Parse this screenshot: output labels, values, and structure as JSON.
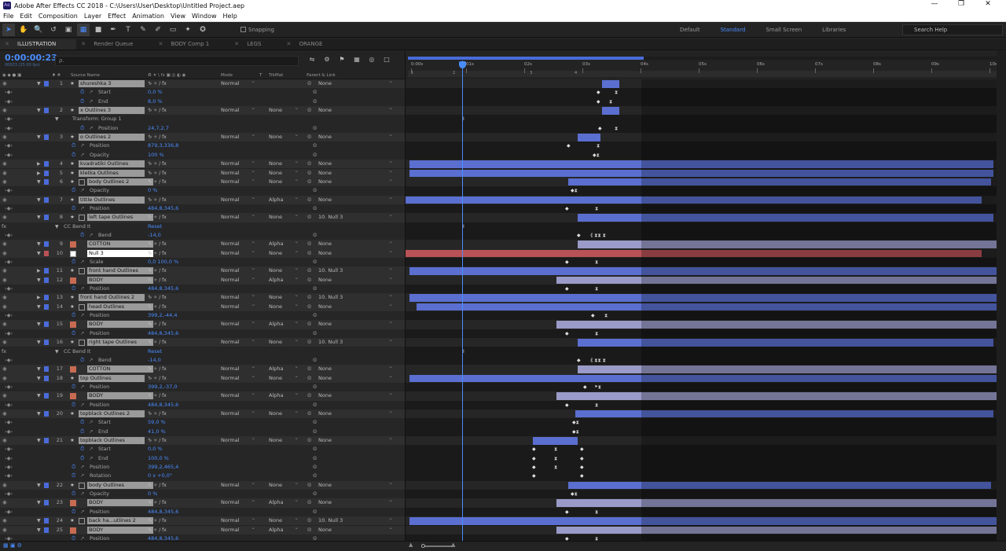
{
  "window": {
    "title": "Adobe After Effects CC 2018 - C:\\Users\\User\\Desktop\\Untitled Project.aep",
    "app_icon": "Ae"
  },
  "menu": [
    "File",
    "Edit",
    "Composition",
    "Layer",
    "Effect",
    "Animation",
    "View",
    "Window",
    "Help"
  ],
  "toolbar": {
    "snapping_label": "Snapping",
    "workspaces": [
      "Default",
      "Standard",
      "Small Screen",
      "Libraries"
    ],
    "active_workspace": "Standard",
    "search_placeholder": "Search Help"
  },
  "tabs": [
    "ILLUSTRATION",
    "Render Queue",
    "BODY Comp 1",
    "LEGS",
    "ORANGE"
  ],
  "active_tab": "ILLUSTRATION",
  "timecode": "0:00:00:23",
  "fps": "00023 (25.00 fps)",
  "search_symbol": "ρ.",
  "columns": {
    "source": "Source Name",
    "mode": "Mode",
    "t": "T",
    "trkmat": "TrkMat",
    "parent": "Parent & Link"
  },
  "ruler": [
    "0:00s",
    "01s",
    "02s",
    "03s",
    "04s",
    "05s",
    "06s",
    "07s",
    "08s",
    "09s",
    "10s"
  ],
  "markers": [
    "1",
    "2",
    "3",
    "4"
  ],
  "rows": [
    {
      "type": "layer",
      "num": "1",
      "name": "shureshka 3",
      "icon": "star",
      "mode": "Normal",
      "trk": "",
      "parent": "None",
      "color": "#4a6bd8",
      "bar": [
        250,
        272
      ],
      "barc": "blue"
    },
    {
      "type": "prop",
      "name": "Start",
      "val": "0,0 %",
      "indent": 1,
      "kf": [
        [
          243,
          "◆"
        ],
        [
          266,
          "⧗"
        ]
      ]
    },
    {
      "type": "prop",
      "name": "End",
      "val": "8,0 %",
      "indent": 1,
      "kf": [
        [
          243,
          "◆"
        ],
        [
          259,
          "⧗"
        ]
      ]
    },
    {
      "type": "layer",
      "num": "2",
      "name": "x Outlines 3",
      "icon": "star",
      "mode": "Normal",
      "trk": "None",
      "parent": "None",
      "color": "#4a6bd8",
      "bar": [
        250,
        272
      ],
      "barc": "blue"
    },
    {
      "type": "grp",
      "name": "Transform: Group 1",
      "indent": 0,
      "kf": [
        [
          73,
          "I"
        ]
      ]
    },
    {
      "type": "prop",
      "name": "Position",
      "val": "24,7,2,7",
      "indent": 1,
      "kf": [
        [
          245,
          "◆"
        ],
        [
          266,
          "⧗"
        ]
      ]
    },
    {
      "type": "layer",
      "num": "3",
      "name": "o Outlines 2",
      "icon": "star",
      "mode": "Normal",
      "trk": "None",
      "parent": "None",
      "color": "#4a6bd8",
      "bar": [
        219,
        248
      ],
      "barc": "blue"
    },
    {
      "type": "prop",
      "name": "Position",
      "val": "879,3,336,8",
      "indent": 0,
      "kf": [
        [
          205,
          "◆"
        ],
        [
          243,
          "⧗"
        ]
      ]
    },
    {
      "type": "prop",
      "name": "Opacity",
      "val": "100 %",
      "indent": 0,
      "kf": [
        [
          238,
          "◆⧗"
        ]
      ]
    },
    {
      "type": "layer",
      "num": "4",
      "name": "kvadratiki Outlines",
      "icon": "star",
      "mode": "Normal",
      "trk": "None",
      "parent": "None",
      "color": "#4a6bd8",
      "bar": [
        5,
        748
      ],
      "barc": "blue",
      "collapsed": true
    },
    {
      "type": "layer",
      "num": "5",
      "name": "kletka Outlines",
      "icon": "star",
      "mode": "Normal",
      "trk": "None",
      "parent": "None",
      "color": "#4a6bd8",
      "bar": [
        5,
        748
      ],
      "barc": "blue",
      "collapsed": true
    },
    {
      "type": "layer",
      "num": "6",
      "name": "body Outlines 2",
      "icon": "star",
      "mode": "Normal",
      "trk": "None",
      "parent": "None",
      "color": "#4a6bd8",
      "bar": [
        207,
        745
      ],
      "barc": "blue",
      "box": true
    },
    {
      "type": "prop",
      "name": "Opacity",
      "val": "0 %",
      "indent": 0,
      "kf": [
        [
          210,
          "◆⧗"
        ]
      ]
    },
    {
      "type": "layer",
      "num": "7",
      "name": "tittle Outlines",
      "icon": "star",
      "mode": "Normal",
      "trk": "Alpha",
      "parent": "None",
      "color": "#4a6bd8",
      "bar": [
        0,
        733
      ],
      "barc": "blue"
    },
    {
      "type": "prop",
      "name": "Position",
      "val": "484,8,345,6",
      "indent": 0,
      "kf": [
        [
          203,
          "◆"
        ],
        [
          241,
          "⧗"
        ]
      ]
    },
    {
      "type": "layer",
      "num": "8",
      "name": "left tape Outlines",
      "icon": "star",
      "mode": "Normal",
      "trk": "None",
      "parent": "10. Null 3",
      "color": "#4a6bd8",
      "bar": [
        219,
        748
      ],
      "barc": "blue",
      "box": true
    },
    {
      "type": "fx",
      "name": "CC Bend It",
      "val": "Reset",
      "indent": 0,
      "kf": [
        [
          73,
          "I"
        ]
      ]
    },
    {
      "type": "prop",
      "name": "Bend",
      "val": "-14,0",
      "indent": 1,
      "kf": [
        [
          218,
          "◆"
        ],
        [
          235,
          "⟪ ⧗⧗ ⧗"
        ]
      ]
    },
    {
      "type": "layer",
      "num": "9",
      "name": "COTTON",
      "icon": "ai",
      "mode": "Normal",
      "trk": "Alpha",
      "parent": "None",
      "color": "#4a6bd8",
      "bar": [
        219,
        753
      ],
      "barc": "lav"
    },
    {
      "type": "layer",
      "num": "10",
      "name": "Null 3",
      "icon": "null",
      "mode": "Normal",
      "trk": "None",
      "parent": "None",
      "color": "#b85257",
      "bar": [
        0,
        733
      ],
      "barc": "red"
    },
    {
      "type": "prop",
      "name": "Scale",
      "val": "0,0 100,0 %",
      "indent": 0,
      "kf": [
        [
          203,
          "◆"
        ],
        [
          241,
          "⧗"
        ]
      ]
    },
    {
      "type": "layer",
      "num": "11",
      "name": "front hand Outlines",
      "icon": "star",
      "mode": "Normal",
      "trk": "None",
      "parent": "10. Null 3",
      "color": "#4a6bd8",
      "bar": [
        5,
        753
      ],
      "barc": "blue",
      "box": true,
      "collapsed": true
    },
    {
      "type": "layer",
      "num": "12",
      "name": "BODY",
      "icon": "ai",
      "mode": "Normal",
      "trk": "Alpha",
      "parent": "None",
      "color": "#4a6bd8",
      "bar": [
        192,
        753
      ],
      "barc": "lav"
    },
    {
      "type": "prop",
      "name": "Position",
      "val": "484,8,345,6",
      "indent": 0,
      "kf": [
        [
          203,
          "◆"
        ],
        [
          241,
          "⧗"
        ]
      ]
    },
    {
      "type": "layer",
      "num": "13",
      "name": "front hand Outlines 2",
      "icon": "star",
      "mode": "Normal",
      "trk": "None",
      "parent": "10. Null 3",
      "color": "#4a6bd8",
      "bar": [
        5,
        753
      ],
      "barc": "blue",
      "collapsed": true
    },
    {
      "type": "layer",
      "num": "14",
      "name": "head Outlines",
      "icon": "star",
      "mode": "Normal",
      "trk": "None",
      "parent": "None",
      "color": "#4a6bd8",
      "bar": [
        14,
        753
      ],
      "barc": "blue",
      "box": true
    },
    {
      "type": "prop",
      "name": "Position",
      "val": "399,2,-44,4",
      "indent": 0,
      "kf": [
        [
          236,
          "◆"
        ],
        [
          253,
          "⧗"
        ]
      ]
    },
    {
      "type": "layer",
      "num": "15",
      "name": "BODY",
      "icon": "ai",
      "mode": "Normal",
      "trk": "Alpha",
      "parent": "None",
      "color": "#4a6bd8",
      "bar": [
        192,
        753
      ],
      "barc": "lav"
    },
    {
      "type": "prop",
      "name": "Position",
      "val": "484,8,345,6",
      "indent": 0,
      "kf": [
        [
          203,
          "◆"
        ],
        [
          241,
          "⧗"
        ]
      ]
    },
    {
      "type": "layer",
      "num": "16",
      "name": "right tape Outlines",
      "icon": "star",
      "mode": "Normal",
      "trk": "None",
      "parent": "10. Null 3",
      "color": "#4a6bd8",
      "bar": [
        219,
        748
      ],
      "barc": "blue",
      "box": true
    },
    {
      "type": "fx",
      "name": "CC Bend It",
      "val": "Reset",
      "indent": 0,
      "kf": [
        [
          73,
          "I"
        ]
      ]
    },
    {
      "type": "prop",
      "name": "Bend",
      "val": "-14,0",
      "indent": 1,
      "kf": [
        [
          218,
          "◆"
        ],
        [
          235,
          "⟪ ⧗⧗ ⧗"
        ]
      ]
    },
    {
      "type": "layer",
      "num": "17",
      "name": "COTTON",
      "icon": "ai",
      "mode": "Normal",
      "trk": "Alpha",
      "parent": "None",
      "color": "#4a6bd8",
      "bar": [
        219,
        753
      ],
      "barc": "lav"
    },
    {
      "type": "layer",
      "num": "18",
      "name": "top Outlines",
      "icon": "star",
      "mode": "Normal",
      "trk": "None",
      "parent": "None",
      "color": "#4a6bd8",
      "bar": [
        5,
        753
      ],
      "barc": "blue"
    },
    {
      "type": "prop",
      "name": "Position",
      "val": "399,2,-37,0",
      "indent": 0,
      "kf": [
        [
          226,
          "◆"
        ],
        [
          240,
          "⯈⧗"
        ]
      ]
    },
    {
      "type": "layer",
      "num": "19",
      "name": "BODY",
      "icon": "ai",
      "mode": "Normal",
      "trk": "Alpha",
      "parent": "None",
      "color": "#4a6bd8",
      "bar": [
        192,
        753
      ],
      "barc": "lav"
    },
    {
      "type": "prop",
      "name": "Position",
      "val": "484,8,345,6",
      "indent": 0,
      "kf": [
        [
          203,
          "◆"
        ],
        [
          241,
          "⧗"
        ]
      ]
    },
    {
      "type": "layer",
      "num": "20",
      "name": "topblack Outlines 2",
      "icon": "star",
      "mode": "Normal",
      "trk": "None",
      "parent": "None",
      "color": "#4a6bd8",
      "bar": [
        216,
        748
      ],
      "barc": "blue"
    },
    {
      "type": "prop",
      "name": "Start",
      "val": "59,0 %",
      "indent": 1,
      "kf": [
        [
          212,
          "◆⧗"
        ]
      ]
    },
    {
      "type": "prop",
      "name": "End",
      "val": "41,0 %",
      "indent": 1,
      "kf": [
        [
          212,
          "◆⧗"
        ]
      ]
    },
    {
      "type": "layer",
      "num": "21",
      "name": "topblack Outlines",
      "icon": "star",
      "mode": "Normal",
      "trk": "None",
      "parent": "None",
      "color": "#4a6bd8",
      "bar": [
        162,
        219
      ],
      "barc": "blue"
    },
    {
      "type": "prop",
      "name": "Start",
      "val": "0,0 %",
      "indent": 1,
      "kf": [
        [
          161,
          "◆"
        ],
        [
          189,
          "⧗"
        ],
        [
          222,
          "◆"
        ]
      ]
    },
    {
      "type": "prop",
      "name": "End",
      "val": "100,0 %",
      "indent": 1,
      "kf": [
        [
          161,
          "◆"
        ],
        [
          189,
          "⧗"
        ],
        [
          222,
          "◆"
        ]
      ]
    },
    {
      "type": "prop",
      "name": "Position",
      "val": "399,2,465,4",
      "indent": 0,
      "kf": [
        [
          161,
          "◆"
        ],
        [
          189,
          "⧗"
        ],
        [
          222,
          "◆"
        ]
      ]
    },
    {
      "type": "prop",
      "name": "Rotation",
      "val": "0 x +0,0°",
      "indent": 0,
      "kf": [
        [
          161,
          "◆"
        ],
        [
          222,
          "◆"
        ]
      ]
    },
    {
      "type": "layer",
      "num": "22",
      "name": "body Outlines",
      "icon": "star",
      "mode": "Normal",
      "trk": "None",
      "parent": "None",
      "color": "#4a6bd8",
      "bar": [
        207,
        745
      ],
      "barc": "blue",
      "box": true
    },
    {
      "type": "prop",
      "name": "Opacity",
      "val": "0 %",
      "indent": 0,
      "kf": [
        [
          210,
          "◆⧗"
        ]
      ]
    },
    {
      "type": "layer",
      "num": "23",
      "name": "BODY",
      "icon": "ai",
      "mode": "Normal",
      "trk": "Alpha",
      "parent": "None",
      "color": "#4a6bd8",
      "bar": [
        192,
        753
      ],
      "barc": "lav"
    },
    {
      "type": "prop",
      "name": "Position",
      "val": "484,8,345,6",
      "indent": 0,
      "kf": [
        [
          203,
          "◆"
        ],
        [
          241,
          "⧗"
        ]
      ]
    },
    {
      "type": "layer",
      "num": "24",
      "name": "back ha...utlines 2",
      "icon": "star",
      "mode": "Normal",
      "trk": "None",
      "parent": "10. Null 3",
      "color": "#4a6bd8",
      "bar": [
        5,
        753
      ],
      "barc": "blue",
      "box": true
    },
    {
      "type": "layer",
      "num": "25",
      "name": "BODY",
      "icon": "ai",
      "mode": "Normal",
      "trk": "Alpha",
      "parent": "None",
      "color": "#4a6bd8",
      "bar": [
        192,
        753
      ],
      "barc": "lav"
    },
    {
      "type": "prop",
      "name": "Position",
      "val": "484,8,345,6",
      "indent": 0,
      "kf": [
        [
          203,
          "◆"
        ],
        [
          241,
          "⧗"
        ]
      ]
    }
  ]
}
